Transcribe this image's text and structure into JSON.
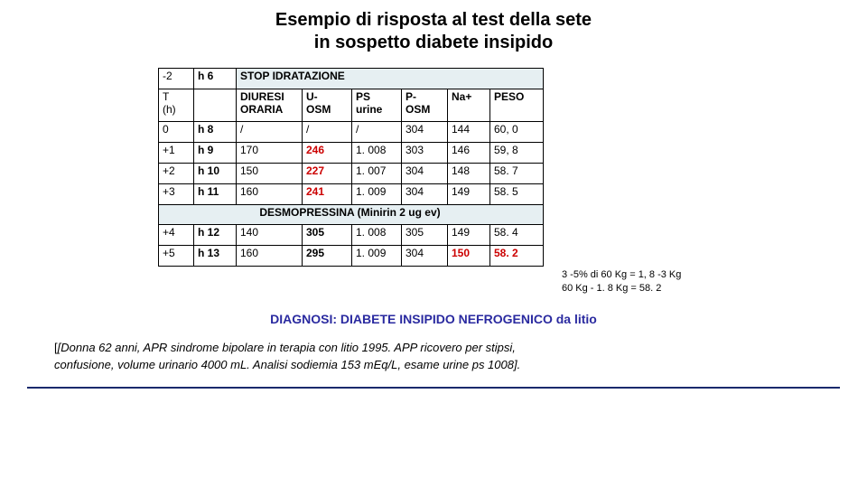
{
  "title_line1": "Esempio di risposta al test della sete",
  "title_line2": "in sospetto diabete insipido",
  "stop_row": {
    "c0": "-2",
    "c1": "h 6",
    "label": "STOP IDRATAZIONE"
  },
  "hdr": {
    "c0a": "T",
    "c0b": "(h)",
    "c2a": "DIURESI",
    "c2b": "ORARIA",
    "c3a": "U-",
    "c3b": "OSM",
    "c4a": "PS",
    "c4b": "urine",
    "c5a": "P-",
    "c5b": "OSM",
    "c6": "Na+",
    "c7": "PESO"
  },
  "rows": [
    {
      "c0": "0",
      "c1": "h 8",
      "c2": "/",
      "c3": "/",
      "c3red": false,
      "c4": "/",
      "c5": "304",
      "c6": "144",
      "c7": "60, 0"
    },
    {
      "c0": "+1",
      "c1": "h 9",
      "c2": "170",
      "c3": "246",
      "c3red": true,
      "c4": "1. 008",
      "c5": "303",
      "c6": "146",
      "c7": "59, 8"
    },
    {
      "c0": "+2",
      "c1": "h 10",
      "c2": "150",
      "c3": "227",
      "c3red": true,
      "c4": "1. 007",
      "c5": "304",
      "c6": "148",
      "c7": "58. 7"
    },
    {
      "c0": "+3",
      "c1": "h 11",
      "c2": "160",
      "c3": "241",
      "c3red": true,
      "c4": "1. 009",
      "c5": "304",
      "c6": "149",
      "c7": "58. 5"
    }
  ],
  "desmo_label": "DESMOPRESSINA (Minirin 2 ug ev)",
  "rows2": [
    {
      "c0": "+4",
      "c1": "h 12",
      "c2": "140",
      "c3": "305",
      "c4": "1. 008",
      "c5": "305",
      "c6": "149",
      "c7": "58. 4",
      "last_red": false
    },
    {
      "c0": "+5",
      "c1": "h 13",
      "c2": "160",
      "c3": "295",
      "c4": "1. 009",
      "c5": "304",
      "c6": "150",
      "c7": "58. 2",
      "last_red": true
    }
  ],
  "sidenote_line1": "3 -5% di 60 Kg = 1, 8 -3 Kg",
  "sidenote_line2": "60 Kg - 1. 8 Kg = 58. 2",
  "diagnosis": "DIAGNOSI: DIABETE INSIPIDO NEFROGENICO da litio",
  "case_line1": "[Donna 62 anni, APR sindrome bipolare in terapia con litio 1995. APP ricovero per stipsi,",
  "case_line2": "confusione, volume urinario 4000 mL. Analisi sodiemia 153 mEq/L, esame urine ps 1008].",
  "colors": {
    "red": "#cc0000",
    "diag": "#2a2aa0",
    "shade": "#e6eff2",
    "rule": "#1a2a6c"
  }
}
